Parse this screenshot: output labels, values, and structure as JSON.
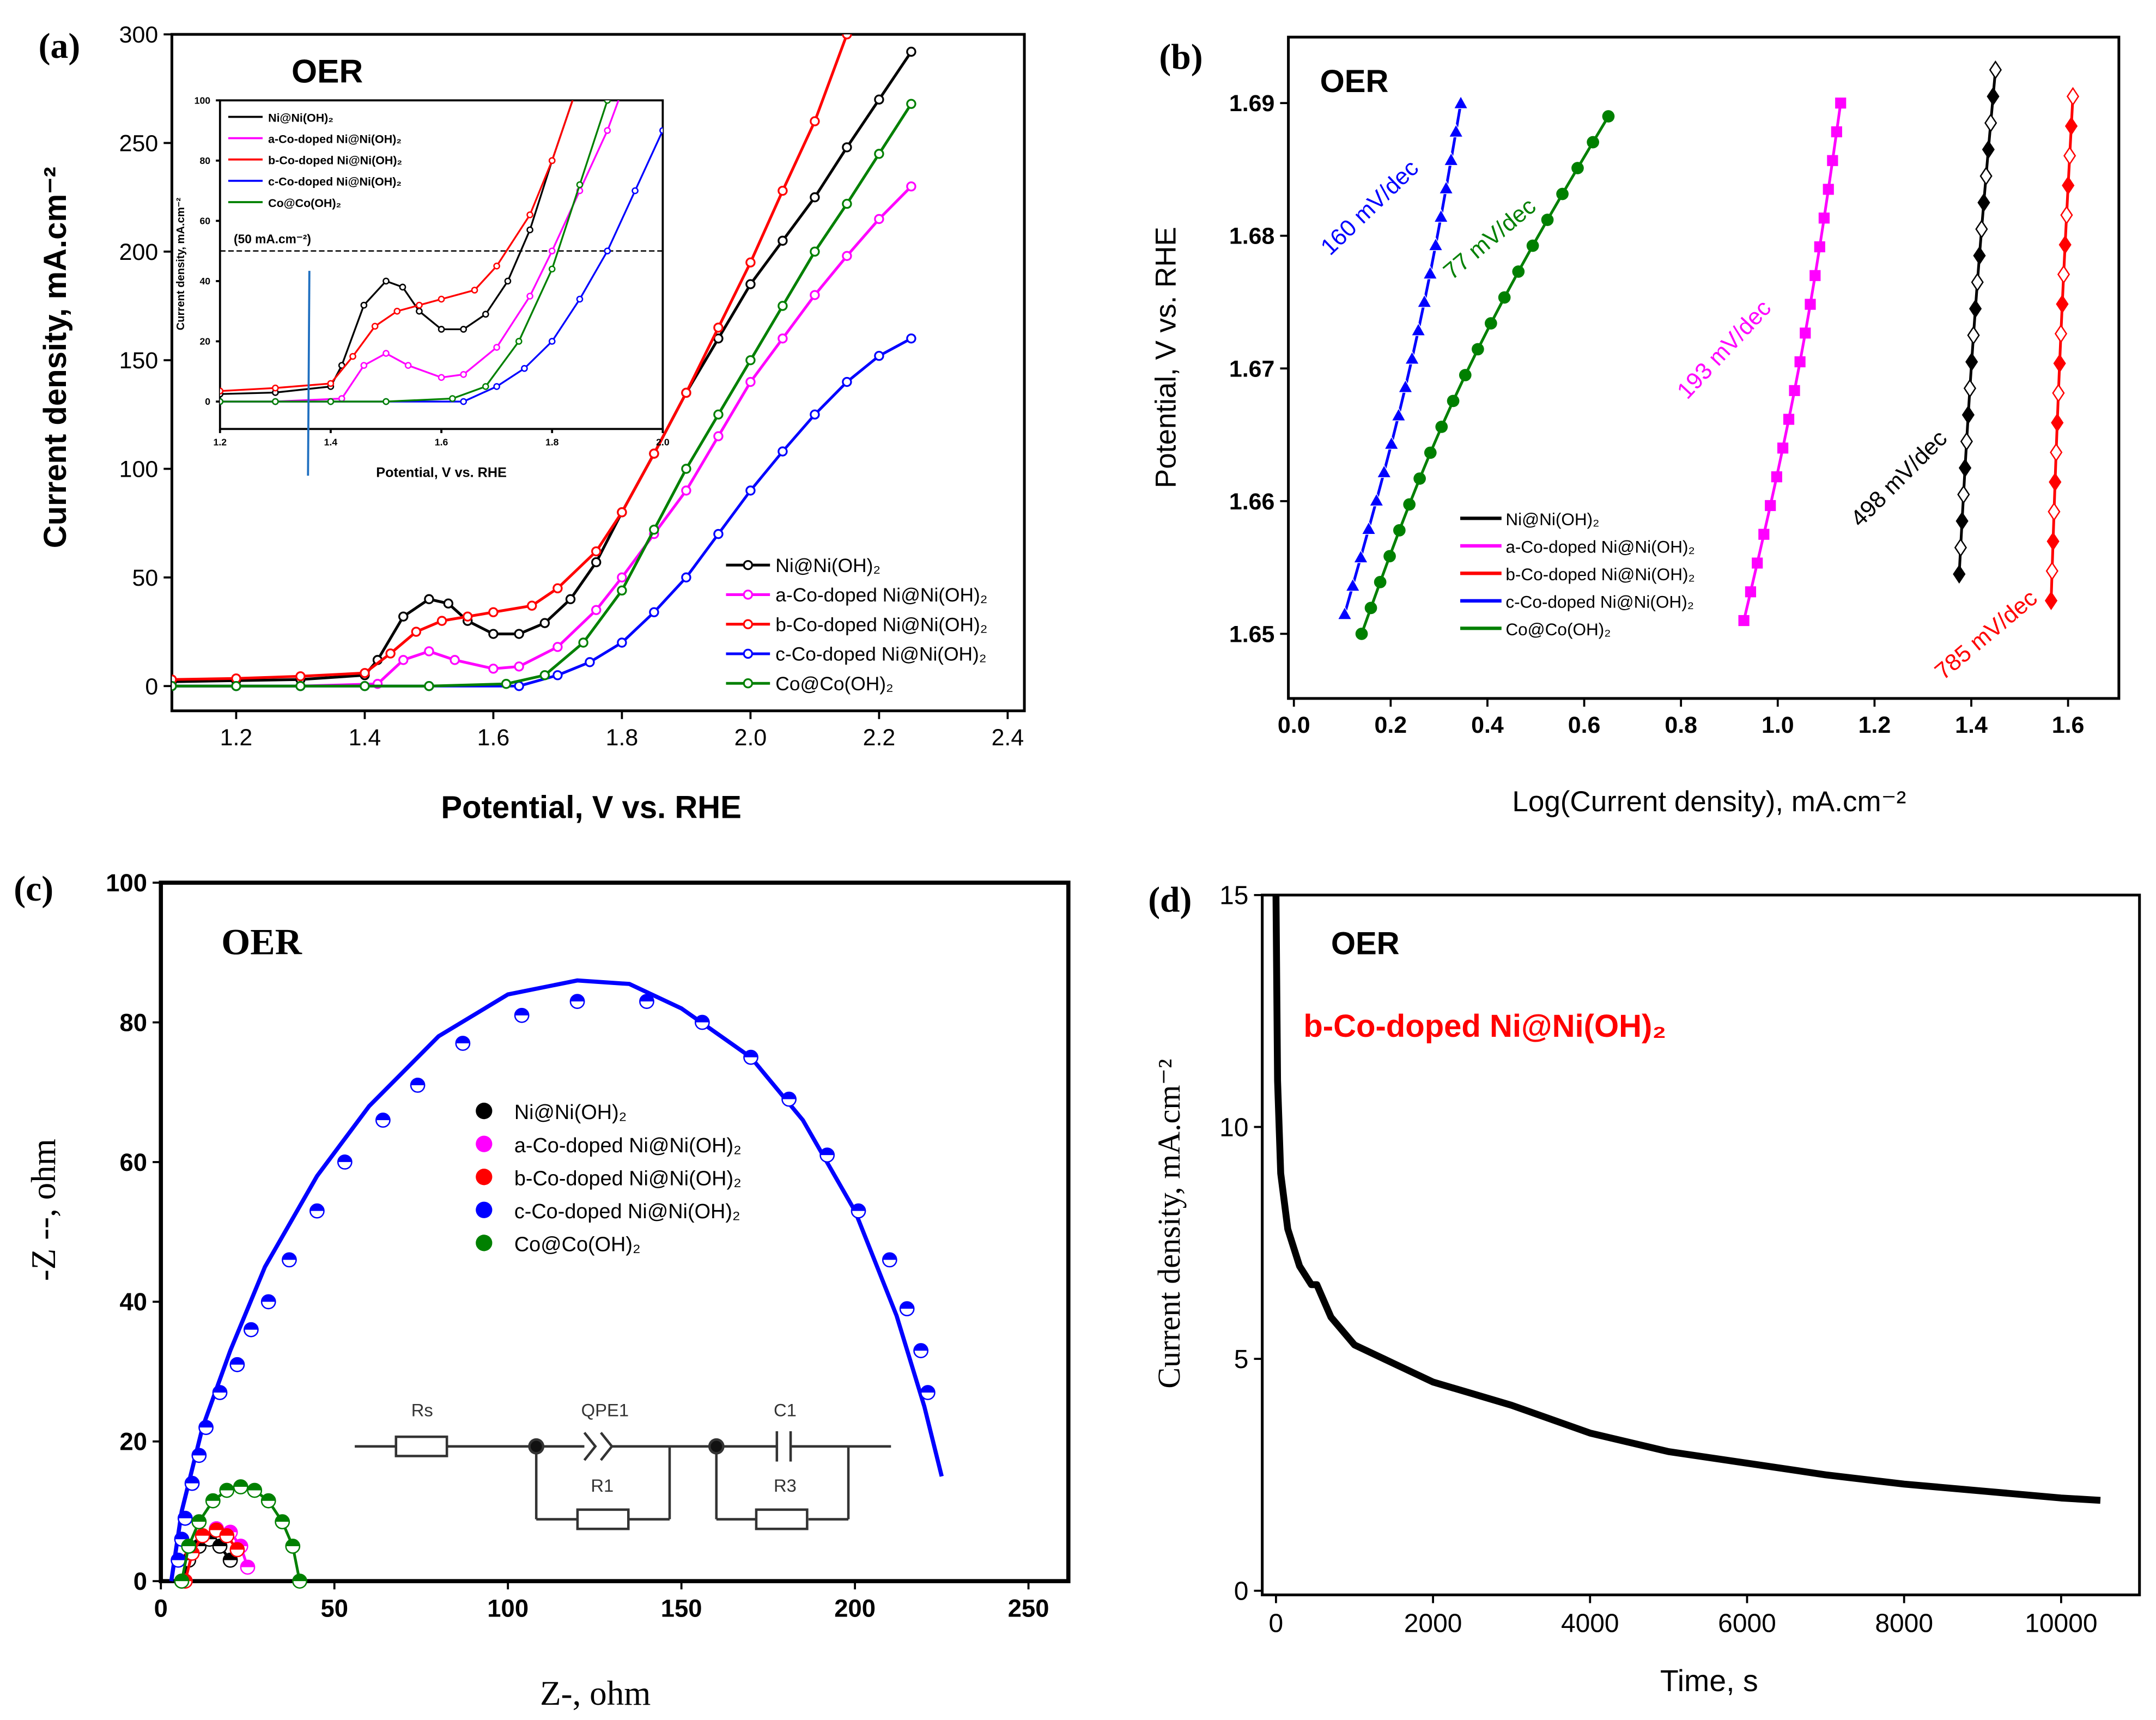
{
  "chart_data": [
    {
      "id": "a",
      "type": "line",
      "panel_label": "(a)",
      "title": "OER",
      "xlabel": "Potential, V vs. RHE",
      "ylabel": "Current density, mA.cm⁻²",
      "xlim": [
        1.1,
        2.4
      ],
      "ylim": [
        0,
        300
      ],
      "x_ticks": [
        "1.2",
        "1.4",
        "1.6",
        "1.8",
        "2.0",
        "2.2",
        "2.4"
      ],
      "y_ticks": [
        "0",
        "50",
        "100",
        "150",
        "200",
        "250",
        "300"
      ],
      "legend_position": "bottom-right",
      "series": [
        {
          "name": "Ni@Ni(OH)₂",
          "color": "#000000",
          "points": [
            [
              1.1,
              2
            ],
            [
              1.2,
              2.5
            ],
            [
              1.3,
              3
            ],
            [
              1.4,
              5
            ],
            [
              1.42,
              12
            ],
            [
              1.46,
              32
            ],
            [
              1.5,
              40
            ],
            [
              1.53,
              38
            ],
            [
              1.56,
              30
            ],
            [
              1.6,
              24
            ],
            [
              1.64,
              24
            ],
            [
              1.68,
              29
            ],
            [
              1.72,
              40
            ],
            [
              1.76,
              57
            ],
            [
              1.8,
              80
            ],
            [
              1.85,
              107
            ],
            [
              1.9,
              135
            ],
            [
              1.95,
              160
            ],
            [
              2.0,
              185
            ],
            [
              2.05,
              205
            ],
            [
              2.1,
              225
            ],
            [
              2.15,
              248
            ],
            [
              2.2,
              270
            ],
            [
              2.25,
              292
            ]
          ]
        },
        {
          "name": "a-Co-doped Ni@Ni(OH)₂",
          "color": "#ff00ff",
          "points": [
            [
              1.1,
              0
            ],
            [
              1.2,
              0
            ],
            [
              1.3,
              0
            ],
            [
              1.42,
              1
            ],
            [
              1.46,
              12
            ],
            [
              1.5,
              16
            ],
            [
              1.54,
              12
            ],
            [
              1.6,
              8
            ],
            [
              1.64,
              9
            ],
            [
              1.7,
              18
            ],
            [
              1.76,
              35
            ],
            [
              1.8,
              50
            ],
            [
              1.85,
              70
            ],
            [
              1.9,
              90
            ],
            [
              1.95,
              115
            ],
            [
              2.0,
              140
            ],
            [
              2.05,
              160
            ],
            [
              2.1,
              180
            ],
            [
              2.15,
              198
            ],
            [
              2.2,
              215
            ],
            [
              2.25,
              230
            ]
          ]
        },
        {
          "name": "b-Co-doped Ni@Ni(OH)₂",
          "color": "#ff0000",
          "points": [
            [
              1.1,
              3
            ],
            [
              1.2,
              3.5
            ],
            [
              1.3,
              4.5
            ],
            [
              1.4,
              6
            ],
            [
              1.44,
              15
            ],
            [
              1.48,
              25
            ],
            [
              1.52,
              30
            ],
            [
              1.56,
              32
            ],
            [
              1.6,
              34
            ],
            [
              1.66,
              37
            ],
            [
              1.7,
              45
            ],
            [
              1.76,
              62
            ],
            [
              1.8,
              80
            ],
            [
              1.85,
              107
            ],
            [
              1.9,
              135
            ],
            [
              1.95,
              165
            ],
            [
              2.0,
              195
            ],
            [
              2.05,
              228
            ],
            [
              2.1,
              260
            ],
            [
              2.15,
              300
            ]
          ]
        },
        {
          "name": "c-Co-doped Ni@Ni(OH)₂",
          "color": "#0000ff",
          "points": [
            [
              1.1,
              0
            ],
            [
              1.2,
              0
            ],
            [
              1.3,
              0
            ],
            [
              1.4,
              0
            ],
            [
              1.5,
              0
            ],
            [
              1.64,
              0
            ],
            [
              1.7,
              5
            ],
            [
              1.75,
              11
            ],
            [
              1.8,
              20
            ],
            [
              1.85,
              34
            ],
            [
              1.9,
              50
            ],
            [
              1.95,
              70
            ],
            [
              2.0,
              90
            ],
            [
              2.05,
              108
            ],
            [
              2.1,
              125
            ],
            [
              2.15,
              140
            ],
            [
              2.2,
              152
            ],
            [
              2.25,
              160
            ]
          ]
        },
        {
          "name": "Co@Co(OH)₂",
          "color": "#008000",
          "points": [
            [
              1.1,
              0
            ],
            [
              1.2,
              0
            ],
            [
              1.3,
              0
            ],
            [
              1.4,
              0
            ],
            [
              1.5,
              0
            ],
            [
              1.62,
              1
            ],
            [
              1.68,
              5
            ],
            [
              1.74,
              20
            ],
            [
              1.8,
              44
            ],
            [
              1.85,
              72
            ],
            [
              1.9,
              100
            ],
            [
              1.95,
              125
            ],
            [
              2.0,
              150
            ],
            [
              2.05,
              175
            ],
            [
              2.1,
              200
            ],
            [
              2.15,
              222
            ],
            [
              2.2,
              245
            ],
            [
              2.25,
              268
            ]
          ]
        }
      ],
      "inset": {
        "xlabel": "Potential, V vs. RHE",
        "ylabel": "Current density, mA.cm⁻²",
        "xlim": [
          1.2,
          2.0
        ],
        "ylim": [
          0,
          100
        ],
        "x_ticks": [
          "1.2",
          "1.4",
          "1.6",
          "1.8",
          "2.0"
        ],
        "y_ticks": [
          "0",
          "20",
          "40",
          "60",
          "80",
          "100"
        ],
        "reference_line_value": 50,
        "reference_line_label": "(50 mA.cm⁻²)",
        "legend_position": "top-left"
      }
    },
    {
      "id": "b",
      "type": "line",
      "panel_label": "(b)",
      "title": "OER",
      "xlabel": "Log(Current density), mA.cm⁻²",
      "ylabel": "Potential, V vs. RHE",
      "xlim": [
        0.0,
        1.7
      ],
      "ylim": [
        1.645,
        1.695
      ],
      "x_ticks": [
        "0.0",
        "0.2",
        "0.4",
        "0.6",
        "0.8",
        "1.0",
        "1.2",
        "1.4",
        "1.6"
      ],
      "y_ticks": [
        "1.65",
        "1.66",
        "1.67",
        "1.68",
        "1.69"
      ],
      "legend_position": "bottom-left",
      "series": [
        {
          "name": "Ni@Ni(OH)₂",
          "color": "#000000",
          "slope_label": "498 mV/dec",
          "start": [
            1.375,
            1.6545
          ],
          "end": [
            1.45,
            1.6925
          ],
          "n": 20
        },
        {
          "name": "a-Co-doped Ni@Ni(OH)₂",
          "color": "#ff00ff",
          "slope_label": "193 mV/dec",
          "start": [
            0.93,
            1.651
          ],
          "end": [
            1.13,
            1.69
          ],
          "n": 19
        },
        {
          "name": "b-Co-doped Ni@Ni(OH)₂",
          "color": "#ff0000",
          "slope_label": "785 mV/dec",
          "start": [
            1.565,
            1.6525
          ],
          "end": [
            1.61,
            1.6905
          ],
          "n": 18
        },
        {
          "name": "c-Co-doped Ni@Ni(OH)₂",
          "color": "#0000ff",
          "slope_label": "160 mV/dec",
          "start": [
            0.105,
            1.6515
          ],
          "end": [
            0.345,
            1.69
          ],
          "n": 19
        },
        {
          "name": "Co@Co(OH)₂",
          "color": "#008000",
          "slope_label": "77 mV/dec",
          "start": [
            0.14,
            1.65
          ],
          "end": [
            0.65,
            1.689
          ],
          "n": 21
        }
      ]
    },
    {
      "id": "c",
      "type": "scatter",
      "panel_label": "(c)",
      "title": "OER",
      "xlabel": "Z-, ohm",
      "ylabel": "-Z --, ohm",
      "xlim": [
        0,
        250
      ],
      "ylim": [
        0,
        100
      ],
      "x_ticks": [
        "0",
        "50",
        "100",
        "150",
        "200",
        "250"
      ],
      "y_ticks": [
        "0",
        "20",
        "40",
        "60",
        "80",
        "100"
      ],
      "legend_position": "center-left",
      "series": [
        {
          "name": "Ni@Ni(OH)₂",
          "color": "#000000",
          "points": [
            [
              6,
              0
            ],
            [
              8,
              3
            ],
            [
              11,
              5
            ],
            [
              14,
              6
            ],
            [
              17,
              5
            ],
            [
              20,
              3
            ]
          ]
        },
        {
          "name": "a-Co-doped Ni@Ni(OH)₂",
          "color": "#ff00ff",
          "points": [
            [
              7,
              0
            ],
            [
              9,
              4
            ],
            [
              12,
              6.5
            ],
            [
              16,
              7.5
            ],
            [
              20,
              7
            ],
            [
              23,
              5
            ],
            [
              25,
              2
            ]
          ]
        },
        {
          "name": "b-Co-doped Ni@Ni(OH)₂",
          "color": "#ff0000",
          "points": [
            [
              7,
              0
            ],
            [
              9,
              4
            ],
            [
              12,
              6.5
            ],
            [
              16,
              7.3
            ],
            [
              19,
              6.5
            ],
            [
              22,
              4.5
            ]
          ]
        },
        {
          "name": "c-Co-doped Ni@Ni(OH)₂",
          "color": "#0000ff",
          "points": [
            [
              5,
              3
            ],
            [
              6,
              6
            ],
            [
              7,
              9
            ],
            [
              9,
              14
            ],
            [
              11,
              18
            ],
            [
              13,
              22
            ],
            [
              17,
              27
            ],
            [
              22,
              31
            ],
            [
              26,
              36
            ],
            [
              31,
              40
            ],
            [
              37,
              46
            ],
            [
              45,
              53
            ],
            [
              53,
              60
            ],
            [
              64,
              66
            ],
            [
              74,
              71
            ],
            [
              87,
              77
            ],
            [
              104,
              81
            ],
            [
              120,
              83
            ],
            [
              140,
              83
            ],
            [
              156,
              80
            ],
            [
              170,
              75
            ],
            [
              181,
              69
            ],
            [
              192,
              61
            ],
            [
              201,
              53
            ],
            [
              210,
              46
            ],
            [
              215,
              39
            ],
            [
              219,
              33
            ],
            [
              221,
              27
            ]
          ],
          "fit": [
            [
              3,
              0
            ],
            [
              6,
              10
            ],
            [
              12,
              22
            ],
            [
              20,
              33
            ],
            [
              30,
              45
            ],
            [
              45,
              58
            ],
            [
              60,
              68
            ],
            [
              80,
              78
            ],
            [
              100,
              84
            ],
            [
              120,
              86
            ],
            [
              135,
              85.5
            ],
            [
              150,
              82
            ],
            [
              170,
              75
            ],
            [
              185,
              66
            ],
            [
              200,
              53
            ],
            [
              212,
              38
            ],
            [
              220,
              25
            ],
            [
              225,
              15
            ]
          ]
        },
        {
          "name": "Co@Co(OH)₂",
          "color": "#008000",
          "points": [
            [
              6,
              0
            ],
            [
              8,
              5
            ],
            [
              11,
              8.5
            ],
            [
              15,
              11.5
            ],
            [
              19,
              13
            ],
            [
              23,
              13.5
            ],
            [
              27,
              13
            ],
            [
              31,
              11.5
            ],
            [
              35,
              8.5
            ],
            [
              38,
              5
            ],
            [
              40,
              0
            ]
          ]
        }
      ],
      "circuit_labels": {
        "rs": "Rs",
        "qpe1": "QPE1",
        "r1": "R1",
        "c1": "C1",
        "r3": "R3"
      }
    },
    {
      "id": "d",
      "type": "line",
      "panel_label": "(d)",
      "title": "OER",
      "annotation": "b-Co-doped Ni@Ni(OH)₂",
      "annotation_color": "#ff0000",
      "xlabel": "Time, s",
      "ylabel": "Current density, mA.cm⁻²",
      "xlim": [
        0,
        11000
      ],
      "ylim": [
        0,
        15
      ],
      "x_ticks": [
        "0",
        "2000",
        "4000",
        "6000",
        "8000",
        "10000"
      ],
      "y_ticks": [
        "0",
        "5",
        "10",
        "15"
      ],
      "series": [
        {
          "name": "b-Co-doped Ni@Ni(OH)₂",
          "color": "#000000",
          "points": [
            [
              0,
              15
            ],
            [
              20,
              11
            ],
            [
              60,
              9
            ],
            [
              150,
              7.8
            ],
            [
              300,
              7
            ],
            [
              450,
              6.6
            ],
            [
              520,
              6.6
            ],
            [
              700,
              5.9
            ],
            [
              1000,
              5.3
            ],
            [
              1500,
              4.9
            ],
            [
              2000,
              4.5
            ],
            [
              2500,
              4.25
            ],
            [
              3000,
              4.0
            ],
            [
              3500,
              3.7
            ],
            [
              4000,
              3.4
            ],
            [
              5000,
              3.0
            ],
            [
              6000,
              2.75
            ],
            [
              7000,
              2.5
            ],
            [
              8000,
              2.3
            ],
            [
              9000,
              2.15
            ],
            [
              10000,
              2.0
            ],
            [
              10500,
              1.95
            ]
          ]
        }
      ]
    }
  ]
}
